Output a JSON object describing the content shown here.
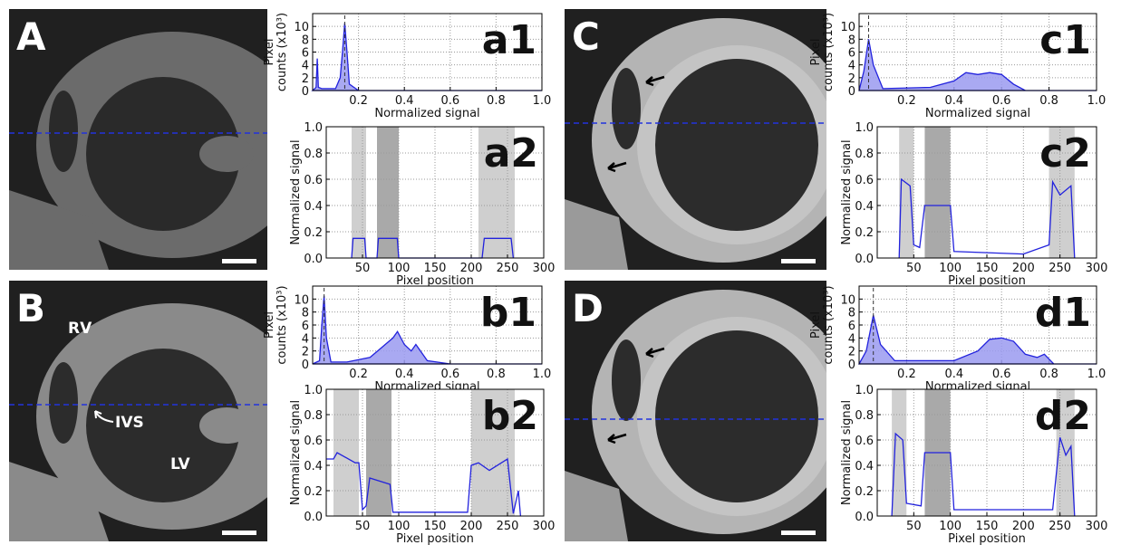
{
  "panels": [
    {
      "label": "A"
    },
    {
      "label": "B",
      "annotations": [
        "RV",
        "IVS",
        "LV"
      ]
    },
    {
      "label": "C"
    },
    {
      "label": "D"
    }
  ],
  "chart_data": [
    {
      "type": "area",
      "label": "a1",
      "xlabel": "Normalized signal",
      "ylabel": [
        "Pixel",
        "counts (x10³)"
      ],
      "color": "#2222dd",
      "x": [
        0,
        0.015,
        0.02,
        0.025,
        0.04,
        0.1,
        0.12,
        0.13,
        0.14,
        0.15,
        0.16,
        0.2,
        1.0
      ],
      "values": [
        0,
        0.5,
        5,
        0.5,
        0.3,
        0.3,
        2,
        6,
        10.5,
        6,
        1,
        0,
        0
      ],
      "marker_x": 0.14,
      "xlim": [
        0,
        1
      ],
      "ylim": [
        0,
        12
      ],
      "xticks": [
        0.2,
        0.4,
        0.6,
        0.8,
        {
          "value": 1,
          "label": "1.0"
        }
      ],
      "yticks": [
        0,
        2,
        4,
        6,
        8,
        10
      ],
      "grid": true
    },
    {
      "type": "line",
      "label": "a2",
      "xlabel": "Pixel position",
      "ylabel": [
        "Normalized signal"
      ],
      "color": "#2222dd",
      "x": [
        35,
        37,
        53,
        55,
        70,
        72,
        98,
        100,
        215,
        218,
        255,
        258
      ],
      "values": [
        0,
        0.15,
        0.15,
        0,
        0,
        0.15,
        0.15,
        0,
        0,
        0.15,
        0.15,
        0
      ],
      "regions": [
        {
          "x": [
            35,
            55
          ],
          "color": "#cfcfcf"
        },
        {
          "x": [
            70,
            100
          ],
          "color": "#a9a9a9"
        },
        {
          "x": [
            210,
            260
          ],
          "color": "#cfcfcf"
        }
      ],
      "xlim": [
        0,
        300
      ],
      "ylim": [
        0,
        1
      ],
      "xticks": [
        50,
        100,
        150,
        200,
        250,
        300
      ],
      "yticks": [
        {
          "value": 0,
          "label": "0.0"
        },
        0.2,
        0.4,
        0.6,
        0.8,
        {
          "value": 1,
          "label": "1.0"
        }
      ],
      "grid": true
    },
    {
      "type": "area",
      "label": "b1",
      "xlabel": "Normalized signal",
      "ylabel": [
        "Pixel",
        "counts (x10³)"
      ],
      "color": "#2222dd",
      "x": [
        0,
        0.03,
        0.04,
        0.05,
        0.06,
        0.08,
        0.15,
        0.25,
        0.3,
        0.35,
        0.37,
        0.4,
        0.43,
        0.45,
        0.5,
        0.6,
        1.0
      ],
      "values": [
        0,
        0.5,
        6,
        10.5,
        4,
        0.3,
        0.3,
        1,
        2.5,
        4,
        5,
        3,
        2,
        3,
        0.5,
        0,
        0
      ],
      "marker_x": 0.05,
      "xlim": [
        0,
        1
      ],
      "ylim": [
        0,
        12
      ],
      "xticks": [
        0.2,
        0.4,
        0.6,
        0.8,
        {
          "value": 1,
          "label": "1.0"
        }
      ],
      "yticks": [
        0,
        2,
        4,
        6,
        8,
        10
      ],
      "grid": true
    },
    {
      "type": "line",
      "label": "b2",
      "xlabel": "Pixel position",
      "ylabel": [
        "Normalized signal"
      ],
      "color": "#2222dd",
      "x": [
        0,
        10,
        15,
        40,
        45,
        50,
        55,
        60,
        88,
        92,
        195,
        200,
        210,
        225,
        250,
        258,
        265,
        268
      ],
      "values": [
        0.45,
        0.45,
        0.5,
        0.42,
        0.42,
        0.05,
        0.08,
        0.3,
        0.25,
        0.03,
        0.03,
        0.4,
        0.42,
        0.36,
        0.45,
        0.02,
        0.2,
        0
      ],
      "regions": [
        {
          "x": [
            10,
            45
          ],
          "color": "#cfcfcf"
        },
        {
          "x": [
            55,
            90
          ],
          "color": "#a9a9a9"
        },
        {
          "x": [
            200,
            260
          ],
          "color": "#cfcfcf"
        }
      ],
      "xlim": [
        0,
        300
      ],
      "ylim": [
        0,
        1
      ],
      "xticks": [
        50,
        100,
        150,
        200,
        250,
        300
      ],
      "yticks": [
        {
          "value": 0,
          "label": "0.0"
        },
        0.2,
        0.4,
        0.6,
        0.8,
        {
          "value": 1,
          "label": "1.0"
        }
      ],
      "grid": true
    },
    {
      "type": "area",
      "label": "c1",
      "xlabel": "Normalized signal",
      "ylabel": [
        "Pixel",
        "counts (x10³)"
      ],
      "color": "#2222dd",
      "x": [
        0,
        0.02,
        0.04,
        0.06,
        0.1,
        0.3,
        0.4,
        0.45,
        0.5,
        0.55,
        0.6,
        0.65,
        0.7,
        1.0
      ],
      "values": [
        0,
        3,
        8,
        4,
        0.3,
        0.5,
        1.5,
        2.8,
        2.5,
        2.8,
        2.5,
        1,
        0,
        0
      ],
      "marker_x": 0.04,
      "xlim": [
        0,
        1
      ],
      "ylim": [
        0,
        12
      ],
      "xticks": [
        0.2,
        0.4,
        0.6,
        0.8,
        {
          "value": 1,
          "label": "1.0"
        }
      ],
      "yticks": [
        0,
        2,
        4,
        6,
        8,
        10
      ],
      "grid": true
    },
    {
      "type": "line",
      "label": "c2",
      "xlabel": "Pixel position",
      "ylabel": [
        "Normalized signal"
      ],
      "color": "#2222dd",
      "x": [
        30,
        33,
        45,
        50,
        58,
        65,
        100,
        105,
        200,
        235,
        240,
        250,
        265,
        270
      ],
      "values": [
        0,
        0.6,
        0.55,
        0.1,
        0.08,
        0.4,
        0.4,
        0.05,
        0.03,
        0.1,
        0.58,
        0.48,
        0.55,
        0
      ],
      "regions": [
        {
          "x": [
            30,
            50
          ],
          "color": "#cfcfcf"
        },
        {
          "x": [
            65,
            100
          ],
          "color": "#a9a9a9"
        },
        {
          "x": [
            235,
            270
          ],
          "color": "#cfcfcf"
        }
      ],
      "xlim": [
        0,
        300
      ],
      "ylim": [
        0,
        1
      ],
      "xticks": [
        50,
        100,
        150,
        200,
        250,
        300
      ],
      "yticks": [
        {
          "value": 0,
          "label": "0.0"
        },
        0.2,
        0.4,
        0.6,
        0.8,
        {
          "value": 1,
          "label": "1.0"
        }
      ],
      "grid": true
    },
    {
      "type": "area",
      "label": "d1",
      "xlabel": "Normalized signal",
      "ylabel": [
        "Pixel",
        "counts (x10³)"
      ],
      "color": "#2222dd",
      "x": [
        0,
        0.03,
        0.06,
        0.09,
        0.15,
        0.4,
        0.5,
        0.55,
        0.6,
        0.65,
        0.7,
        0.75,
        0.78,
        0.82,
        1.0
      ],
      "values": [
        0,
        2,
        7.5,
        3,
        0.5,
        0.5,
        2,
        3.8,
        4,
        3.5,
        1.5,
        1,
        1.5,
        0,
        0
      ],
      "marker_x": 0.06,
      "xlim": [
        0,
        1
      ],
      "ylim": [
        0,
        12
      ],
      "xticks": [
        0.2,
        0.4,
        0.6,
        0.8,
        {
          "value": 1,
          "label": "1.0"
        }
      ],
      "yticks": [
        0,
        2,
        4,
        6,
        8,
        10
      ],
      "grid": true
    },
    {
      "type": "line",
      "label": "d2",
      "xlabel": "Pixel position",
      "ylabel": [
        "Normalized signal"
      ],
      "color": "#2222dd",
      "x": [
        20,
        25,
        35,
        40,
        60,
        65,
        100,
        105,
        240,
        250,
        258,
        265,
        270
      ],
      "values": [
        0,
        0.65,
        0.6,
        0.1,
        0.08,
        0.5,
        0.5,
        0.05,
        0.05,
        0.62,
        0.48,
        0.55,
        0
      ],
      "regions": [
        {
          "x": [
            20,
            40
          ],
          "color": "#cfcfcf"
        },
        {
          "x": [
            65,
            100
          ],
          "color": "#a9a9a9"
        },
        {
          "x": [
            245,
            270
          ],
          "color": "#cfcfcf"
        }
      ],
      "xlim": [
        0,
        300
      ],
      "ylim": [
        0,
        1
      ],
      "xticks": [
        50,
        100,
        150,
        200,
        250,
        300
      ],
      "yticks": [
        {
          "value": 0,
          "label": "0.0"
        },
        0.2,
        0.4,
        0.6,
        0.8,
        {
          "value": 1,
          "label": "1.0"
        }
      ],
      "grid": true
    }
  ]
}
